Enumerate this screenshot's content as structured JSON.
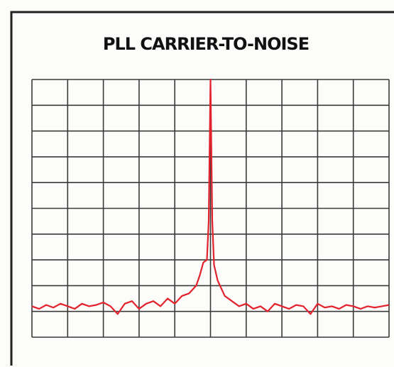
{
  "chart_data": {
    "type": "line",
    "title": "PLL CARRIER-TO-NOISE",
    "x": [
      0,
      0.2,
      0.4,
      0.6,
      0.8,
      1.0,
      1.2,
      1.4,
      1.6,
      1.8,
      2.0,
      2.2,
      2.4,
      2.6,
      2.8,
      3.0,
      3.2,
      3.4,
      3.6,
      3.8,
      4.0,
      4.2,
      4.4,
      4.6,
      4.7,
      4.8,
      4.9,
      4.95,
      5.0,
      5.05,
      5.1,
      5.2,
      5.3,
      5.4,
      5.6,
      5.8,
      6.0,
      6.2,
      6.4,
      6.6,
      6.8,
      7.0,
      7.2,
      7.4,
      7.6,
      7.8,
      8.0,
      8.2,
      8.4,
      8.6,
      8.8,
      9.0,
      9.2,
      9.4,
      9.6,
      9.8,
      10
    ],
    "series": [
      {
        "color": "#e2222c",
        "values": [
          1.2,
          1.1,
          1.25,
          1.15,
          1.3,
          1.2,
          1.1,
          1.3,
          1.2,
          1.25,
          1.35,
          1.2,
          0.9,
          1.3,
          1.4,
          1.1,
          1.3,
          1.4,
          1.2,
          1.5,
          1.3,
          1.6,
          1.7,
          2.0,
          2.4,
          2.9,
          3.0,
          4.5,
          10,
          4.5,
          2.8,
          2.2,
          1.9,
          1.6,
          1.4,
          1.2,
          1.3,
          1.1,
          1.2,
          1.0,
          1.3,
          1.2,
          1.1,
          1.25,
          1.2,
          0.9,
          1.3,
          1.15,
          1.2,
          1.1,
          1.25,
          1.2,
          1.1,
          1.2,
          1.15,
          1.2,
          1.25
        ]
      }
    ],
    "xlim": [
      0,
      10
    ],
    "ylim": [
      0,
      10
    ],
    "xticks": [
      0,
      1,
      2,
      3,
      4,
      5,
      6,
      7,
      8,
      9,
      10
    ],
    "yticks": [
      0,
      1,
      2,
      3,
      4,
      5,
      6,
      7,
      8,
      9,
      10
    ],
    "grid": true
  }
}
